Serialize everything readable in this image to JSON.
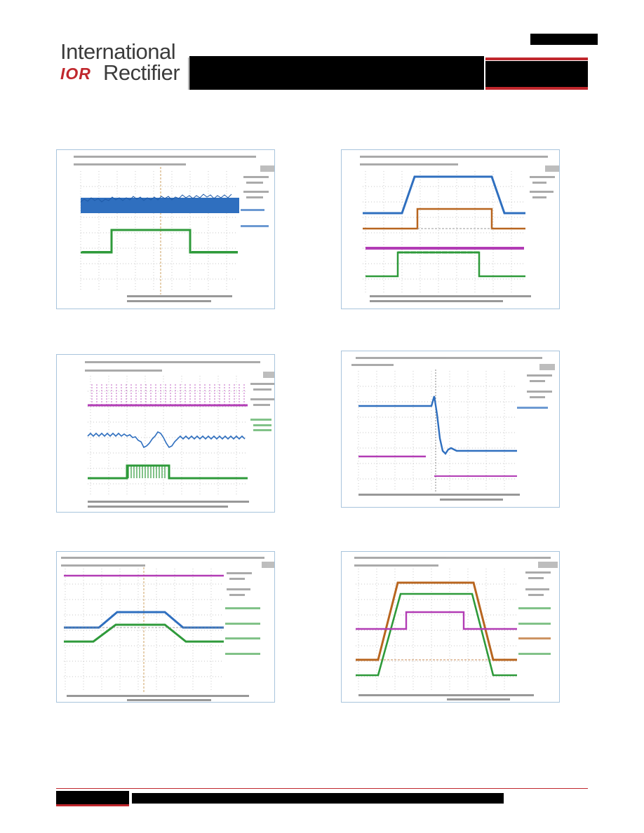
{
  "header": {
    "logo_line1": "International",
    "logo_mark": "IOR",
    "logo_line2": "Rectifier"
  },
  "colors": {
    "brand_red": "#c0272d",
    "ch_blue": "#2f6fbf",
    "ch_green": "#2e9a3a",
    "ch_purple": "#b23cb5",
    "ch_orange": "#b8651f",
    "panel_border": "#a8c4dc",
    "grid": "#b5b5b5"
  },
  "scope_panels": [
    {
      "id": "scope-1"
    },
    {
      "id": "scope-2"
    },
    {
      "id": "scope-3"
    },
    {
      "id": "scope-4"
    },
    {
      "id": "scope-5"
    },
    {
      "id": "scope-6"
    }
  ]
}
